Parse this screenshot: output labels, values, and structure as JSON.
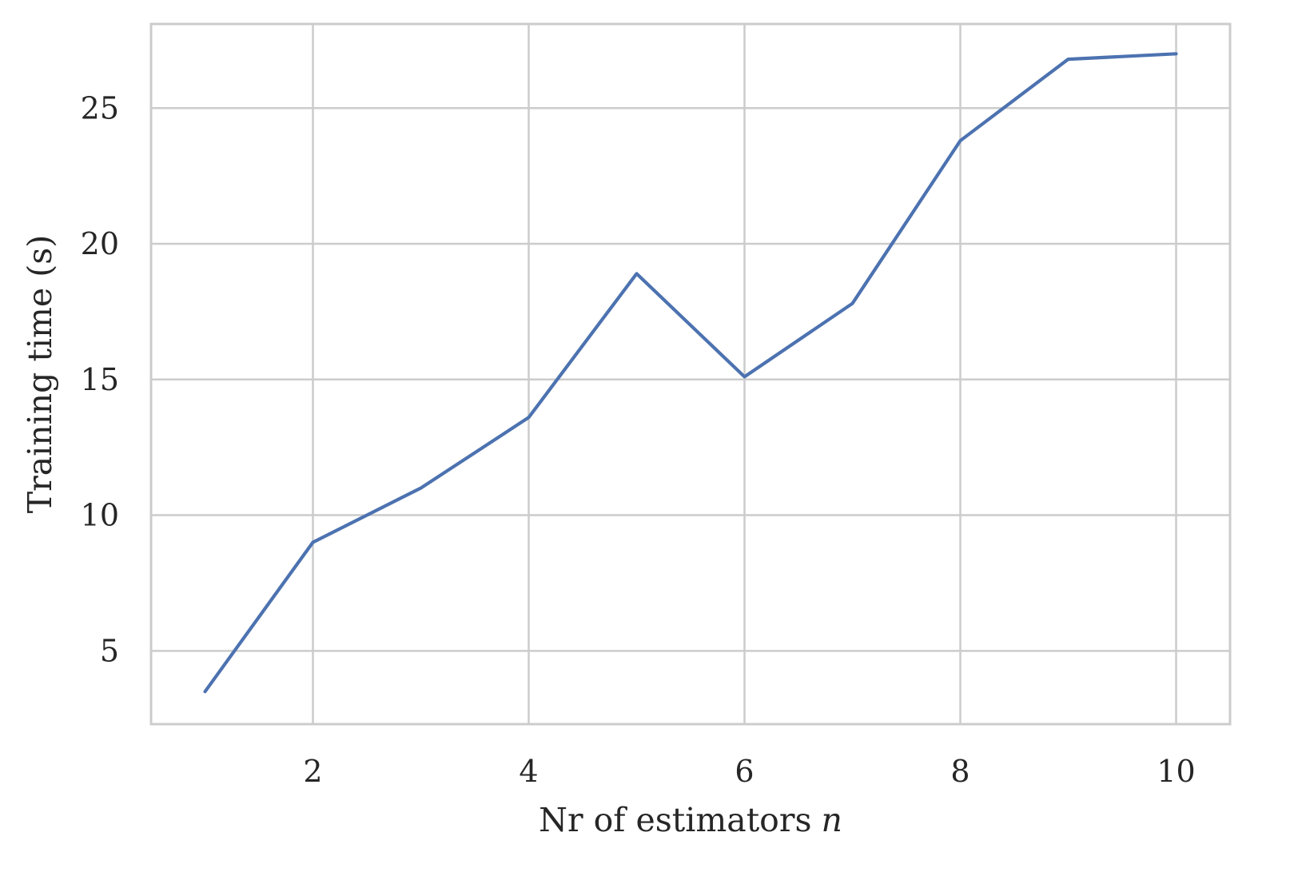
{
  "chart_data": {
    "type": "line",
    "title": "",
    "xlabel": "Nr of estimators",
    "xlabel_var": "n",
    "ylabel": "Training time (s)",
    "xlim": [
      0.5,
      10.5
    ],
    "ylim": [
      2.3,
      28.1
    ],
    "xticks": [
      2,
      4,
      6,
      8,
      10
    ],
    "yticks": [
      5,
      10,
      15,
      20,
      25
    ],
    "grid": true,
    "series": [
      {
        "x": [
          1,
          2,
          3,
          4,
          5,
          6,
          7,
          8,
          9,
          10
        ],
        "y": [
          3.5,
          9.0,
          11.0,
          13.6,
          18.9,
          15.1,
          17.8,
          23.8,
          26.8,
          27.0
        ]
      }
    ],
    "colors": {
      "series": "#4c72b0",
      "grid": "#cccccc",
      "text": "#262626"
    }
  }
}
